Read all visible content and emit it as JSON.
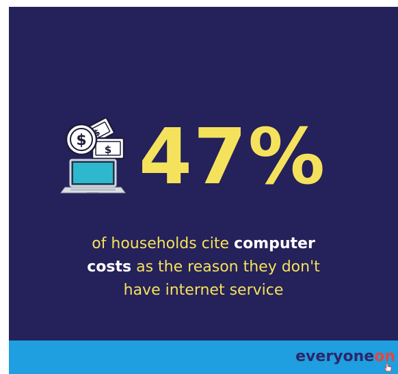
{
  "stat": {
    "value": "47%"
  },
  "caption": {
    "part1": "of households cite ",
    "part2": "computer",
    "part3": "costs",
    "part4": " as the reason they don't",
    "part5": "have internet service"
  },
  "brand": {
    "part1": "everyone",
    "part2": "on"
  },
  "icons": {
    "illustration": "laptop-with-money-icon",
    "cursor": "hand-pointer-icon"
  },
  "colors": {
    "background": "#25215a",
    "highlight": "#f5e25c",
    "footer": "#1f9ee0",
    "brand_dark": "#2b2769",
    "brand_red": "#e8453c"
  }
}
